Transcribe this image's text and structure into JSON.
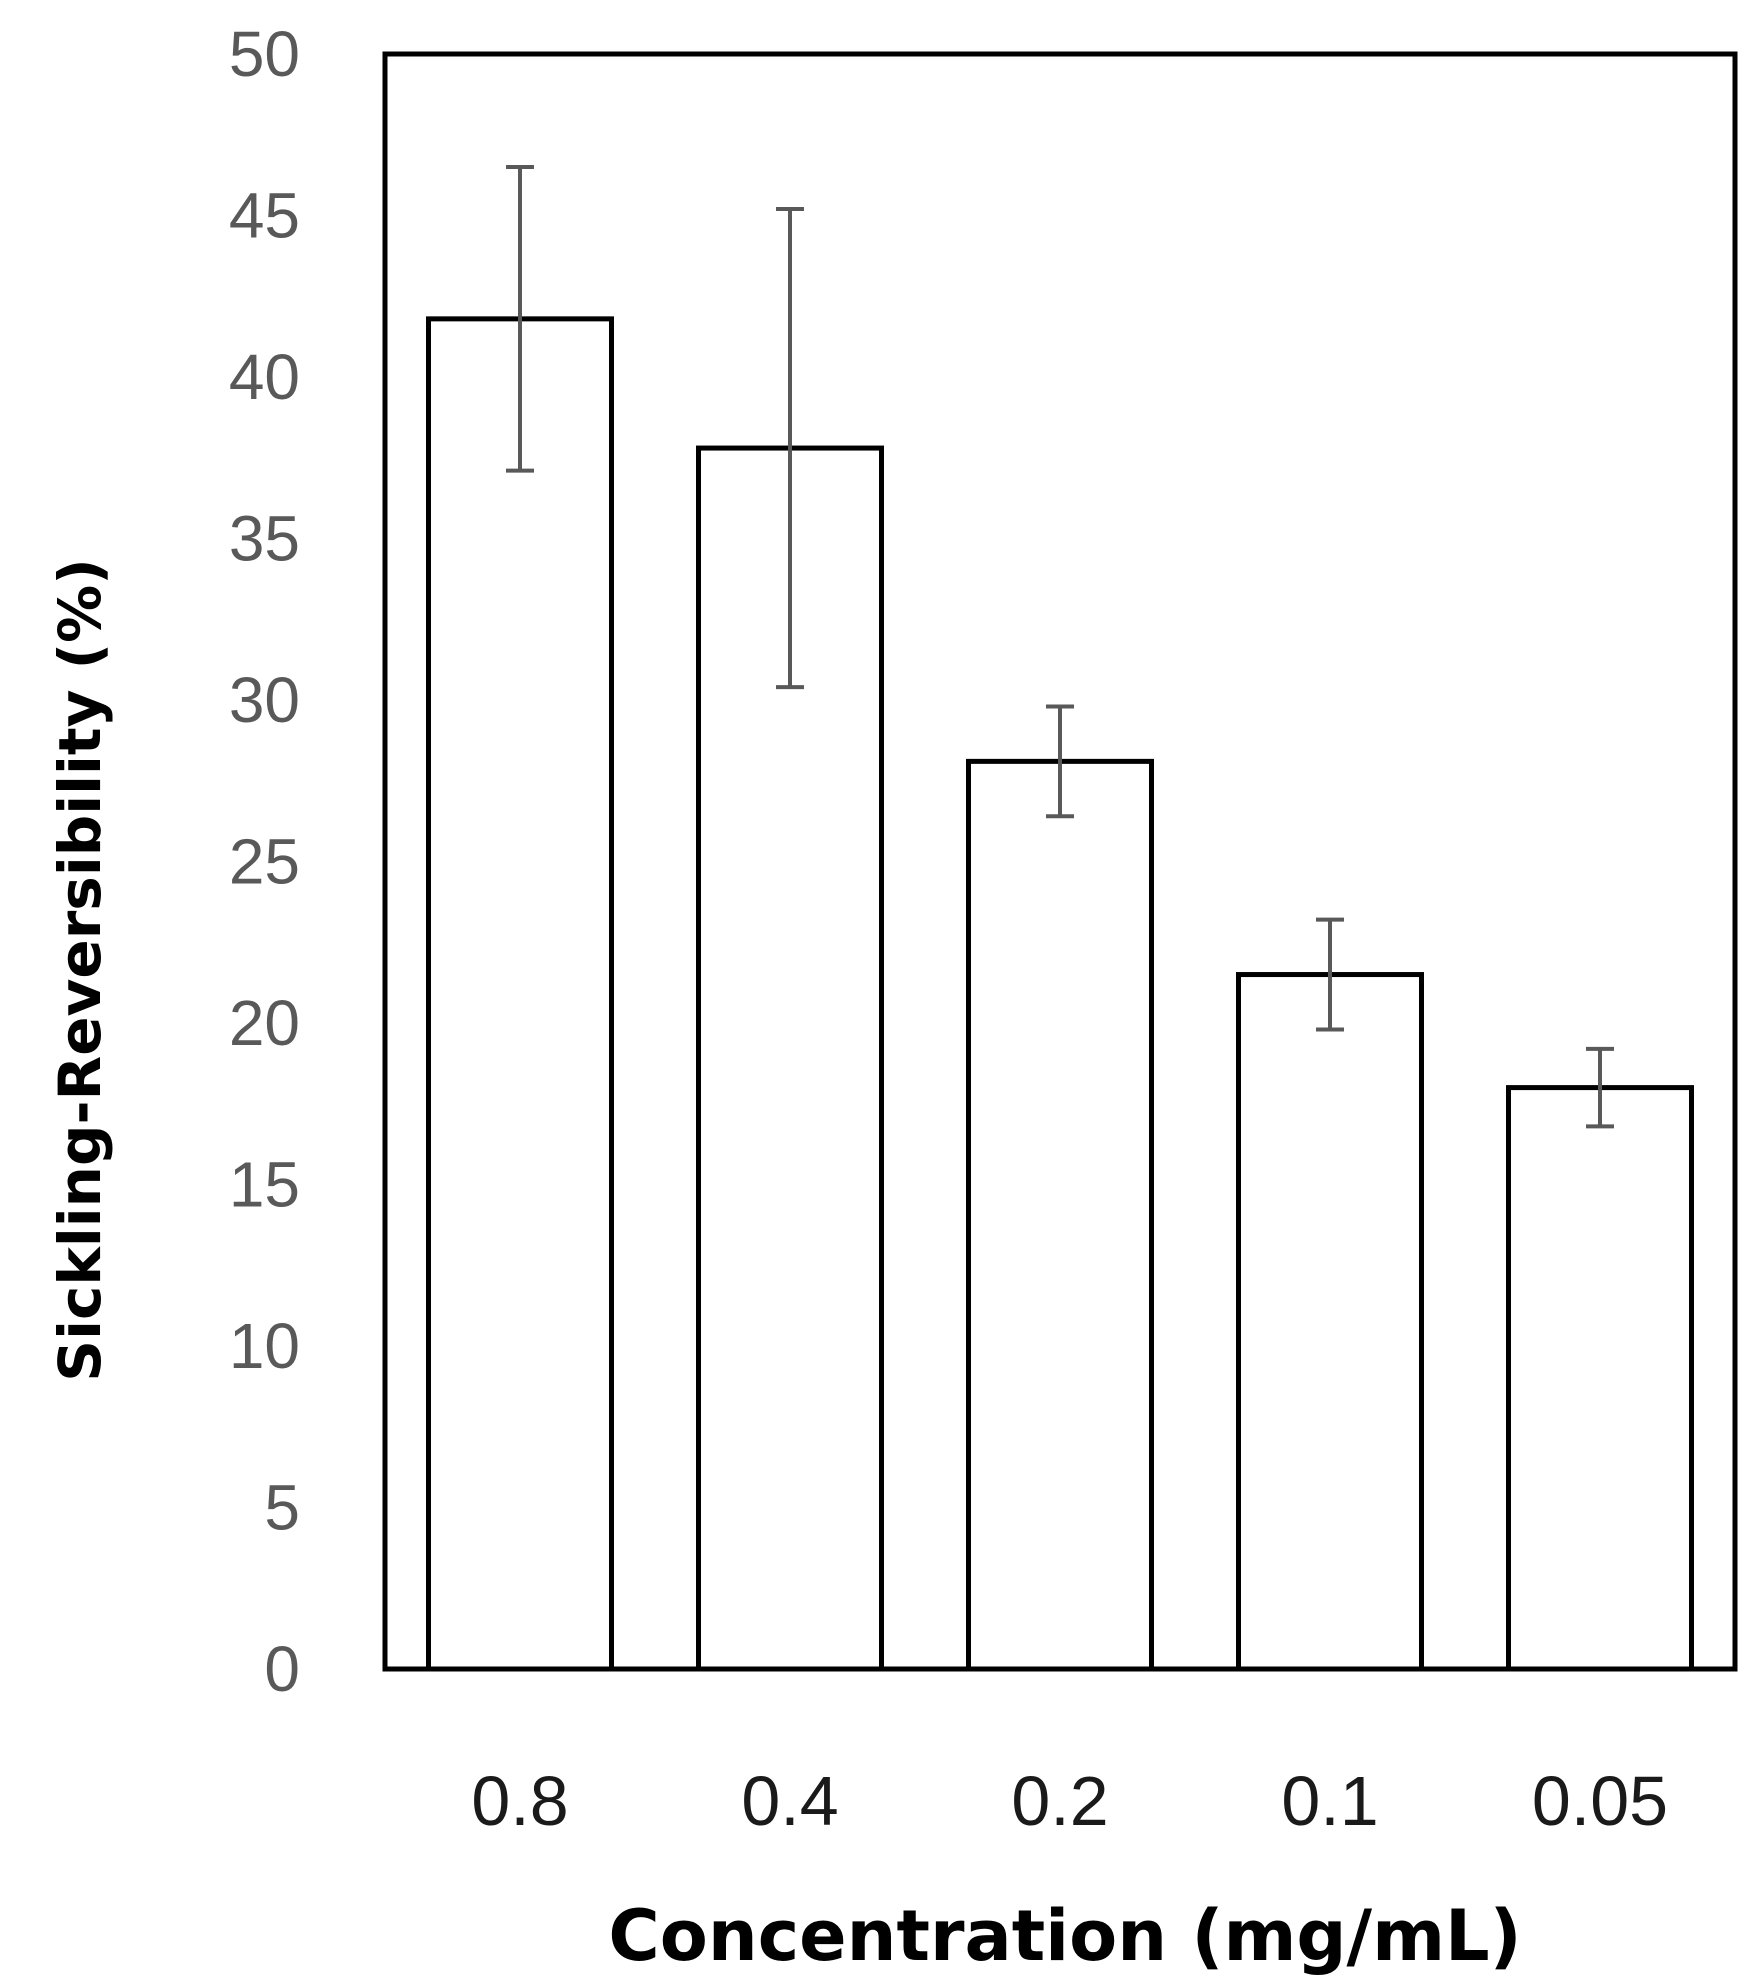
{
  "chart_data": {
    "type": "bar",
    "categories": [
      "0.8",
      "0.4",
      "0.2",
      "0.1",
      "0.05"
    ],
    "values": [
      41.8,
      37.8,
      28.1,
      21.5,
      18.0
    ],
    "error": [
      4.7,
      7.4,
      1.7,
      1.7,
      1.2
    ],
    "xlabel": "Concentration (mg/mL)",
    "ylabel": "Sickling-Reversibility (%)",
    "ylim": [
      0,
      50
    ],
    "yticks": [
      0,
      5,
      10,
      15,
      20,
      25,
      30,
      35,
      40,
      45,
      50
    ],
    "grid": false,
    "legend": "none",
    "colors": {
      "bar_fill": "#ffffff",
      "bar_stroke": "#000000",
      "error": "#595959",
      "tick_text": "#595959"
    }
  }
}
